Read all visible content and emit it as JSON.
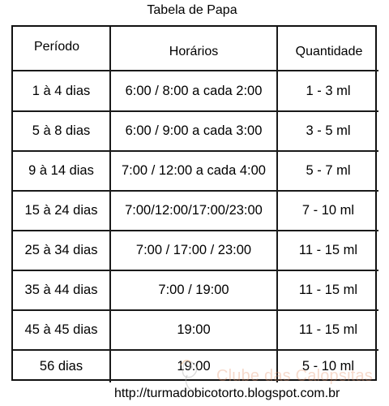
{
  "title": "Tabela de Papa",
  "headers": {
    "period": "Período",
    "times": "Horários",
    "quantity": "Quantidade"
  },
  "rows": [
    {
      "period": "1 à 4 dias",
      "times": "6:00 / 8:00 a cada 2:00",
      "quantity": "1 - 3 ml"
    },
    {
      "period": "5 à 8 dias",
      "times": "6:00 / 9:00 a cada 3:00",
      "quantity": "3 - 5 ml"
    },
    {
      "period": "9 à 14 dias",
      "times": "7:00 / 12:00 a cada 4:00",
      "quantity": "5 - 7 ml"
    },
    {
      "period": "15 à 24 dias",
      "times": "7:00/12:00/17:00/23:00",
      "quantity": "7 - 10 ml"
    },
    {
      "period": "25 à 34 dias",
      "times": "7:00 / 17:00 / 23:00",
      "quantity": "11 - 15 ml"
    },
    {
      "period": "35 à 44 dias",
      "times": "7:00 / 19:00",
      "quantity": "11 - 15 ml"
    },
    {
      "period": "45 à 45 dias",
      "times": "19:00",
      "quantity": "11 - 15 ml"
    },
    {
      "period": "56 dias",
      "times": "19:00",
      "quantity": "5 - 10 ml"
    }
  ],
  "footer_url": "http://turmadobicotorto.blogspot.com.br",
  "watermark": {
    "text": "Clube das Calopsitas",
    "icon": "parrot-icon",
    "color": "#e6966e"
  }
}
